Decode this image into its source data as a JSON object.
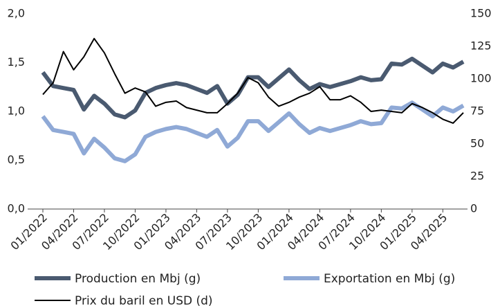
{
  "chart_data": {
    "type": "line",
    "categories": [
      "01/2022",
      null,
      null,
      "04/2022",
      null,
      null,
      "07/2022",
      null,
      null,
      "10/2022",
      null,
      null,
      "01/2023",
      null,
      null,
      "04/2023",
      null,
      null,
      "07/2023",
      null,
      null,
      "10/2023",
      null,
      null,
      "01/2024",
      null,
      null,
      "04/2024",
      null,
      null,
      "07/2024",
      null,
      null,
      "10/2024",
      null,
      null,
      "01/2025",
      null,
      null,
      "04/2025",
      null,
      null
    ],
    "series": [
      {
        "name": "Production en Mbj (g)",
        "color": "#4a5a70",
        "axis": "y",
        "values": [
          1.4,
          1.26,
          1.24,
          1.22,
          1.02,
          1.16,
          1.08,
          0.97,
          0.94,
          1.01,
          1.19,
          1.24,
          1.27,
          1.29,
          1.27,
          1.23,
          1.19,
          1.26,
          1.08,
          1.17,
          1.35,
          1.35,
          1.25,
          1.34,
          1.43,
          1.32,
          1.23,
          1.28,
          1.25,
          1.28,
          1.31,
          1.35,
          1.32,
          1.33,
          1.49,
          1.48,
          1.54,
          1.47,
          1.4,
          1.49,
          1.45,
          1.51
        ]
      },
      {
        "name": "Exportation en Mbj (g)",
        "color": "#8fa9d6",
        "axis": "y",
        "values": [
          0.95,
          0.81,
          0.79,
          0.77,
          0.57,
          0.72,
          0.63,
          0.52,
          0.49,
          0.56,
          0.74,
          0.79,
          0.82,
          0.84,
          0.82,
          0.78,
          0.74,
          0.81,
          0.64,
          0.73,
          0.9,
          0.9,
          0.8,
          0.89,
          0.98,
          0.87,
          0.78,
          0.83,
          0.8,
          0.83,
          0.86,
          0.9,
          0.87,
          0.88,
          1.04,
          1.03,
          1.09,
          1.02,
          0.95,
          1.04,
          1.0,
          1.06
        ]
      },
      {
        "name": "Prix du baril en USD (d)",
        "color": "#000000",
        "axis": "y2",
        "values": [
          88,
          97,
          121,
          107,
          117,
          131,
          120,
          104,
          89,
          93,
          90,
          79,
          82,
          83,
          78,
          76,
          74,
          74,
          81,
          89,
          101,
          97,
          86,
          79,
          82,
          86,
          89,
          94,
          84,
          84,
          87,
          82,
          75,
          76,
          75,
          74,
          81,
          78,
          74,
          69,
          66,
          74
        ]
      }
    ],
    "ylim": [
      0,
      2
    ],
    "yticks": [
      {
        "value": 0,
        "label": "0,0"
      },
      {
        "value": 0.5,
        "label": "0,5"
      },
      {
        "value": 1,
        "label": "1,0"
      },
      {
        "value": 1.5,
        "label": "1,5"
      },
      {
        "value": 2,
        "label": "2,0"
      }
    ],
    "y2lim": [
      0,
      150
    ],
    "y2ticks": [
      0,
      25,
      50,
      75,
      100,
      125,
      150
    ],
    "grid": false
  }
}
